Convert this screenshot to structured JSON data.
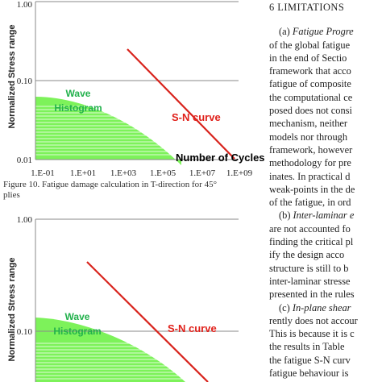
{
  "figures": [
    {
      "ylabel": "Normalized Stress range",
      "y_ticks": [
        "1.00",
        "0.10",
        "0.01"
      ],
      "x_ticks": [
        "1.E-01",
        "1.E+01",
        "1.E+03",
        "1.E+05",
        "1.E+07",
        "1.E+09"
      ],
      "wave_label_1": "Wave",
      "wave_label_2": "Histogram",
      "sn_label": "S-N curve",
      "x_label": "Number of Cycles",
      "caption_line1": "Figure 10. Fatigue damage calculation in T-direction for 45°",
      "caption_line2": "plies"
    },
    {
      "ylabel": "Normalized Stress range",
      "y_ticks": [
        "1.00",
        "0.10"
      ],
      "wave_label_1": "Wave",
      "wave_label_2": "Histogram",
      "sn_label": "S-N curve"
    }
  ],
  "right_column": {
    "heading": "6  LIMITATIONS",
    "lines": [
      {
        "text": "(a) Fatigue Progre",
        "italic_part": "Fatigue Progre",
        "prefix": "(a) "
      },
      {
        "text": "of the global fatigue"
      },
      {
        "text": "in the end of Sectio"
      },
      {
        "text": "framework that acco"
      },
      {
        "text": "fatigue of composite"
      },
      {
        "text": "the computational ce"
      },
      {
        "text": "posed does not consi"
      },
      {
        "text": "mechanism,   neither"
      },
      {
        "text": "models nor through"
      },
      {
        "text": "framework, however"
      },
      {
        "text": "methodology for pre"
      },
      {
        "text": "inates. In practical d"
      },
      {
        "text": "weak-points in the de"
      },
      {
        "text": "of the fatigue, in ord"
      },
      {
        "text": "(b) Inter-laminar e",
        "italic_part": "Inter-laminar e",
        "prefix": "(b) "
      },
      {
        "text": "are not accounted fo"
      },
      {
        "text": "finding the critical pl"
      },
      {
        "text": "ify the design acco"
      },
      {
        "text": "structure is still to b"
      },
      {
        "text": "inter-laminar stresse"
      },
      {
        "text": "presented in the rules"
      },
      {
        "text": "(c) In-plane shear",
        "italic_part": "In-plane shear",
        "prefix": "(c) "
      },
      {
        "text": "rently does not accour"
      },
      {
        "text": "This is because it is c"
      },
      {
        "text": "the results in Table"
      },
      {
        "text": "the fatigue S-N curv"
      },
      {
        "text": "fatigue behaviour is"
      }
    ]
  },
  "colors": {
    "histogram_fill": "#7df25a",
    "histogram_lines": "#ffffff",
    "sn_curve": "#d8231c",
    "wave_text": "#22b14c",
    "grid": "#8a8a8a"
  }
}
